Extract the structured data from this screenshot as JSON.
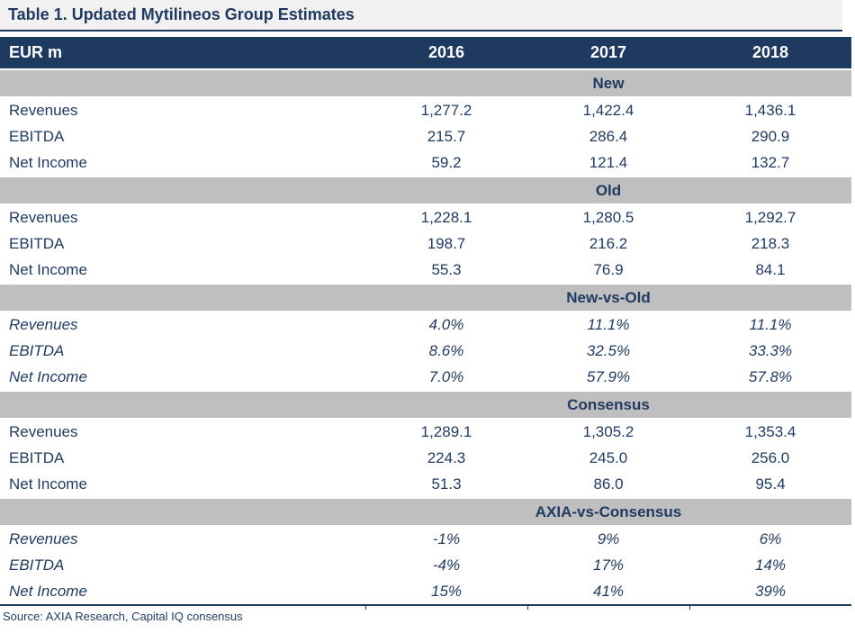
{
  "title": "Table 1. Updated Mytilineos Group Estimates",
  "table": {
    "unit_header": "EUR m",
    "year_headers": [
      "2016",
      "2017",
      "2018"
    ],
    "sections": [
      {
        "label": "New",
        "style": "regular",
        "rows": [
          {
            "label": "Revenues",
            "values": [
              "1,277.2",
              "1,422.4",
              "1,436.1"
            ]
          },
          {
            "label": "EBITDA",
            "values": [
              "215.7",
              "286.4",
              "290.9"
            ]
          },
          {
            "label": "Net Income",
            "values": [
              "59.2",
              "121.4",
              "132.7"
            ]
          }
        ]
      },
      {
        "label": "Old",
        "style": "regular",
        "rows": [
          {
            "label": "Revenues",
            "values": [
              "1,228.1",
              "1,280.5",
              "1,292.7"
            ]
          },
          {
            "label": "EBITDA",
            "values": [
              "198.7",
              "216.2",
              "218.3"
            ]
          },
          {
            "label": "Net Income",
            "values": [
              "55.3",
              "76.9",
              "84.1"
            ]
          }
        ]
      },
      {
        "label": "New-vs-Old",
        "style": "italic",
        "rows": [
          {
            "label": "Revenues",
            "values": [
              "4.0%",
              "11.1%",
              "11.1%"
            ]
          },
          {
            "label": "EBITDA",
            "values": [
              "8.6%",
              "32.5%",
              "33.3%"
            ]
          },
          {
            "label": "Net Income",
            "values": [
              "7.0%",
              "57.9%",
              "57.8%"
            ]
          }
        ]
      },
      {
        "label": "Consensus",
        "style": "regular",
        "rows": [
          {
            "label": "Revenues",
            "values": [
              "1,289.1",
              "1,305.2",
              "1,353.4"
            ]
          },
          {
            "label": "EBITDA",
            "values": [
              "224.3",
              "245.0",
              "256.0"
            ]
          },
          {
            "label": "Net Income",
            "values": [
              "51.3",
              "86.0",
              "95.4"
            ]
          }
        ]
      },
      {
        "label": "AXIA-vs-Consensus",
        "style": "italic",
        "rows": [
          {
            "label": "Revenues",
            "values": [
              "-1%",
              "9%",
              "6%"
            ]
          },
          {
            "label": "EBITDA",
            "values": [
              "-4%",
              "17%",
              "14%"
            ]
          },
          {
            "label": "Net Income",
            "values": [
              "15%",
              "41%",
              "39%"
            ]
          }
        ]
      }
    ]
  },
  "source": "Source: AXIA Research, Capital IQ consensus",
  "colors": {
    "navy": "#1f3a5f",
    "band_gray": "#bfbfbf",
    "title_bg": "#f1f1f1",
    "text": "#1f3a5f"
  }
}
